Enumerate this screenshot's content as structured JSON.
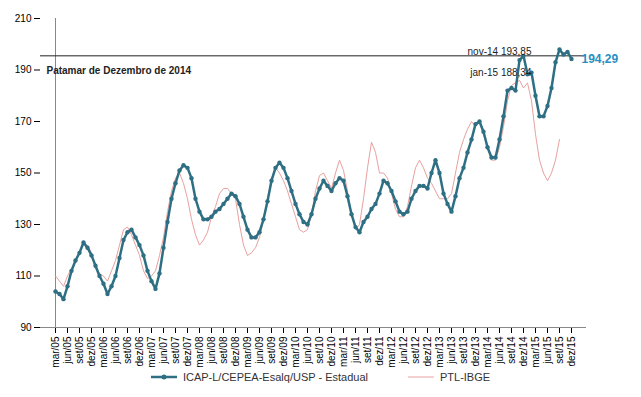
{
  "chart_data": {
    "type": "line",
    "categories": [
      "mar/05",
      null,
      null,
      "jun/05",
      null,
      null,
      "set/05",
      null,
      null,
      "dez/05",
      null,
      null,
      "mar/06",
      null,
      null,
      "jun/06",
      null,
      null,
      "set/06",
      null,
      null,
      "dez/06",
      null,
      null,
      "mar/07",
      null,
      null,
      "jun/07",
      null,
      null,
      "set/07",
      null,
      null,
      "dez/07",
      null,
      null,
      "mar/08",
      null,
      null,
      "jun/08",
      null,
      null,
      "set/08",
      null,
      null,
      "dez/08",
      null,
      null,
      "mar/09",
      null,
      null,
      "jun/09",
      null,
      null,
      "set/09",
      null,
      null,
      "dez/09",
      null,
      null,
      "mar/10",
      null,
      null,
      "jun/10",
      null,
      null,
      "set/10",
      null,
      null,
      "dez/10",
      null,
      null,
      "mar/11",
      null,
      null,
      "jun/11",
      null,
      null,
      "set/11",
      null,
      null,
      "dez/11",
      null,
      null,
      "mar/12",
      null,
      null,
      "jun/12",
      null,
      null,
      "set/12",
      null,
      null,
      "dez/12",
      null,
      null,
      "mar/13",
      null,
      null,
      "jun/13",
      null,
      null,
      "set/13",
      null,
      null,
      "dez/13",
      null,
      null,
      "mar/14",
      null,
      null,
      "jun/14",
      null,
      null,
      "set/14",
      null,
      null,
      "dez/14",
      null,
      null,
      "mar/15",
      null,
      null,
      "jun/15",
      null,
      null,
      "set/15",
      null,
      null,
      "dez/15"
    ],
    "series": [
      {
        "name": "ICAP-L/CEPEA-Esalq/USP - Estadual",
        "color": "#2e6f84",
        "marker": "circle",
        "line_style": "solid",
        "values": [
          104,
          103,
          101,
          106,
          112,
          116,
          119,
          123,
          121,
          118,
          114,
          110,
          107,
          103,
          106,
          110,
          117,
          124,
          127,
          128,
          125,
          122,
          118,
          112,
          108,
          105,
          111,
          121,
          131,
          140,
          146,
          151,
          153,
          152,
          148,
          140,
          135,
          132,
          132,
          133,
          135,
          136,
          138,
          140,
          142,
          141,
          138,
          133,
          128,
          125,
          125,
          127,
          132,
          139,
          147,
          152,
          154,
          152,
          148,
          143,
          138,
          134,
          131,
          130,
          134,
          140,
          144,
          147,
          145,
          143,
          146,
          148,
          147,
          141,
          134,
          129,
          127,
          131,
          133,
          136,
          138,
          142,
          147,
          146,
          143,
          139,
          135,
          134,
          135,
          140,
          143,
          145,
          145,
          144,
          150,
          155,
          150,
          142,
          138,
          135,
          141,
          148,
          152,
          158,
          163,
          169,
          170,
          166,
          160,
          156,
          156,
          163,
          172,
          182,
          183,
          182,
          193.85,
          195.5,
          188.34,
          189,
          180,
          172,
          172,
          176,
          183,
          193,
          198,
          196,
          197,
          194.29
        ]
      },
      {
        "name": "PTL-IBGE",
        "color": "#e8a0a0",
        "line_style": "solid",
        "values": [
          110,
          108,
          106,
          110,
          113,
          116,
          119,
          122,
          122,
          119,
          113,
          111,
          110,
          108,
          112,
          116,
          122,
          128,
          129,
          126,
          122,
          118,
          112,
          109,
          110,
          112,
          118,
          125,
          135,
          143,
          148,
          150,
          146,
          140,
          132,
          126,
          122,
          124,
          127,
          133,
          137,
          142,
          144,
          144,
          142,
          140,
          130,
          122,
          118,
          119,
          121,
          125,
          132,
          140,
          148,
          152,
          150,
          147,
          143,
          138,
          133,
          128,
          127,
          128,
          134,
          143,
          149,
          150,
          147,
          144,
          150,
          155,
          151,
          143,
          134,
          128,
          130,
          140,
          152,
          162,
          158,
          150,
          150,
          148,
          142,
          136,
          133,
          133,
          137,
          145,
          152,
          155,
          152,
          148,
          146,
          143,
          140,
          140,
          140,
          142,
          150,
          158,
          163,
          167,
          170,
          168,
          170,
          165,
          160,
          155,
          155,
          160,
          168,
          178,
          184,
          185,
          186,
          183,
          185,
          178,
          165,
          155,
          150,
          147,
          150,
          155,
          163,
          null,
          null,
          null
        ]
      }
    ],
    "ylim": [
      90,
      210
    ],
    "yticks": [
      90,
      110,
      130,
      150,
      170,
      190,
      210
    ],
    "grid": false,
    "legend": "bottom",
    "reference_line": {
      "value": 195.5,
      "label": "Patamar de Dezembro de 2014"
    },
    "annotations": [
      {
        "text": "nov-14 193,85",
        "color": "#222222"
      },
      {
        "text": "jan-15 188,34",
        "color": "#222222"
      },
      {
        "text": "194,29",
        "color": "#2a8fc0"
      }
    ]
  }
}
